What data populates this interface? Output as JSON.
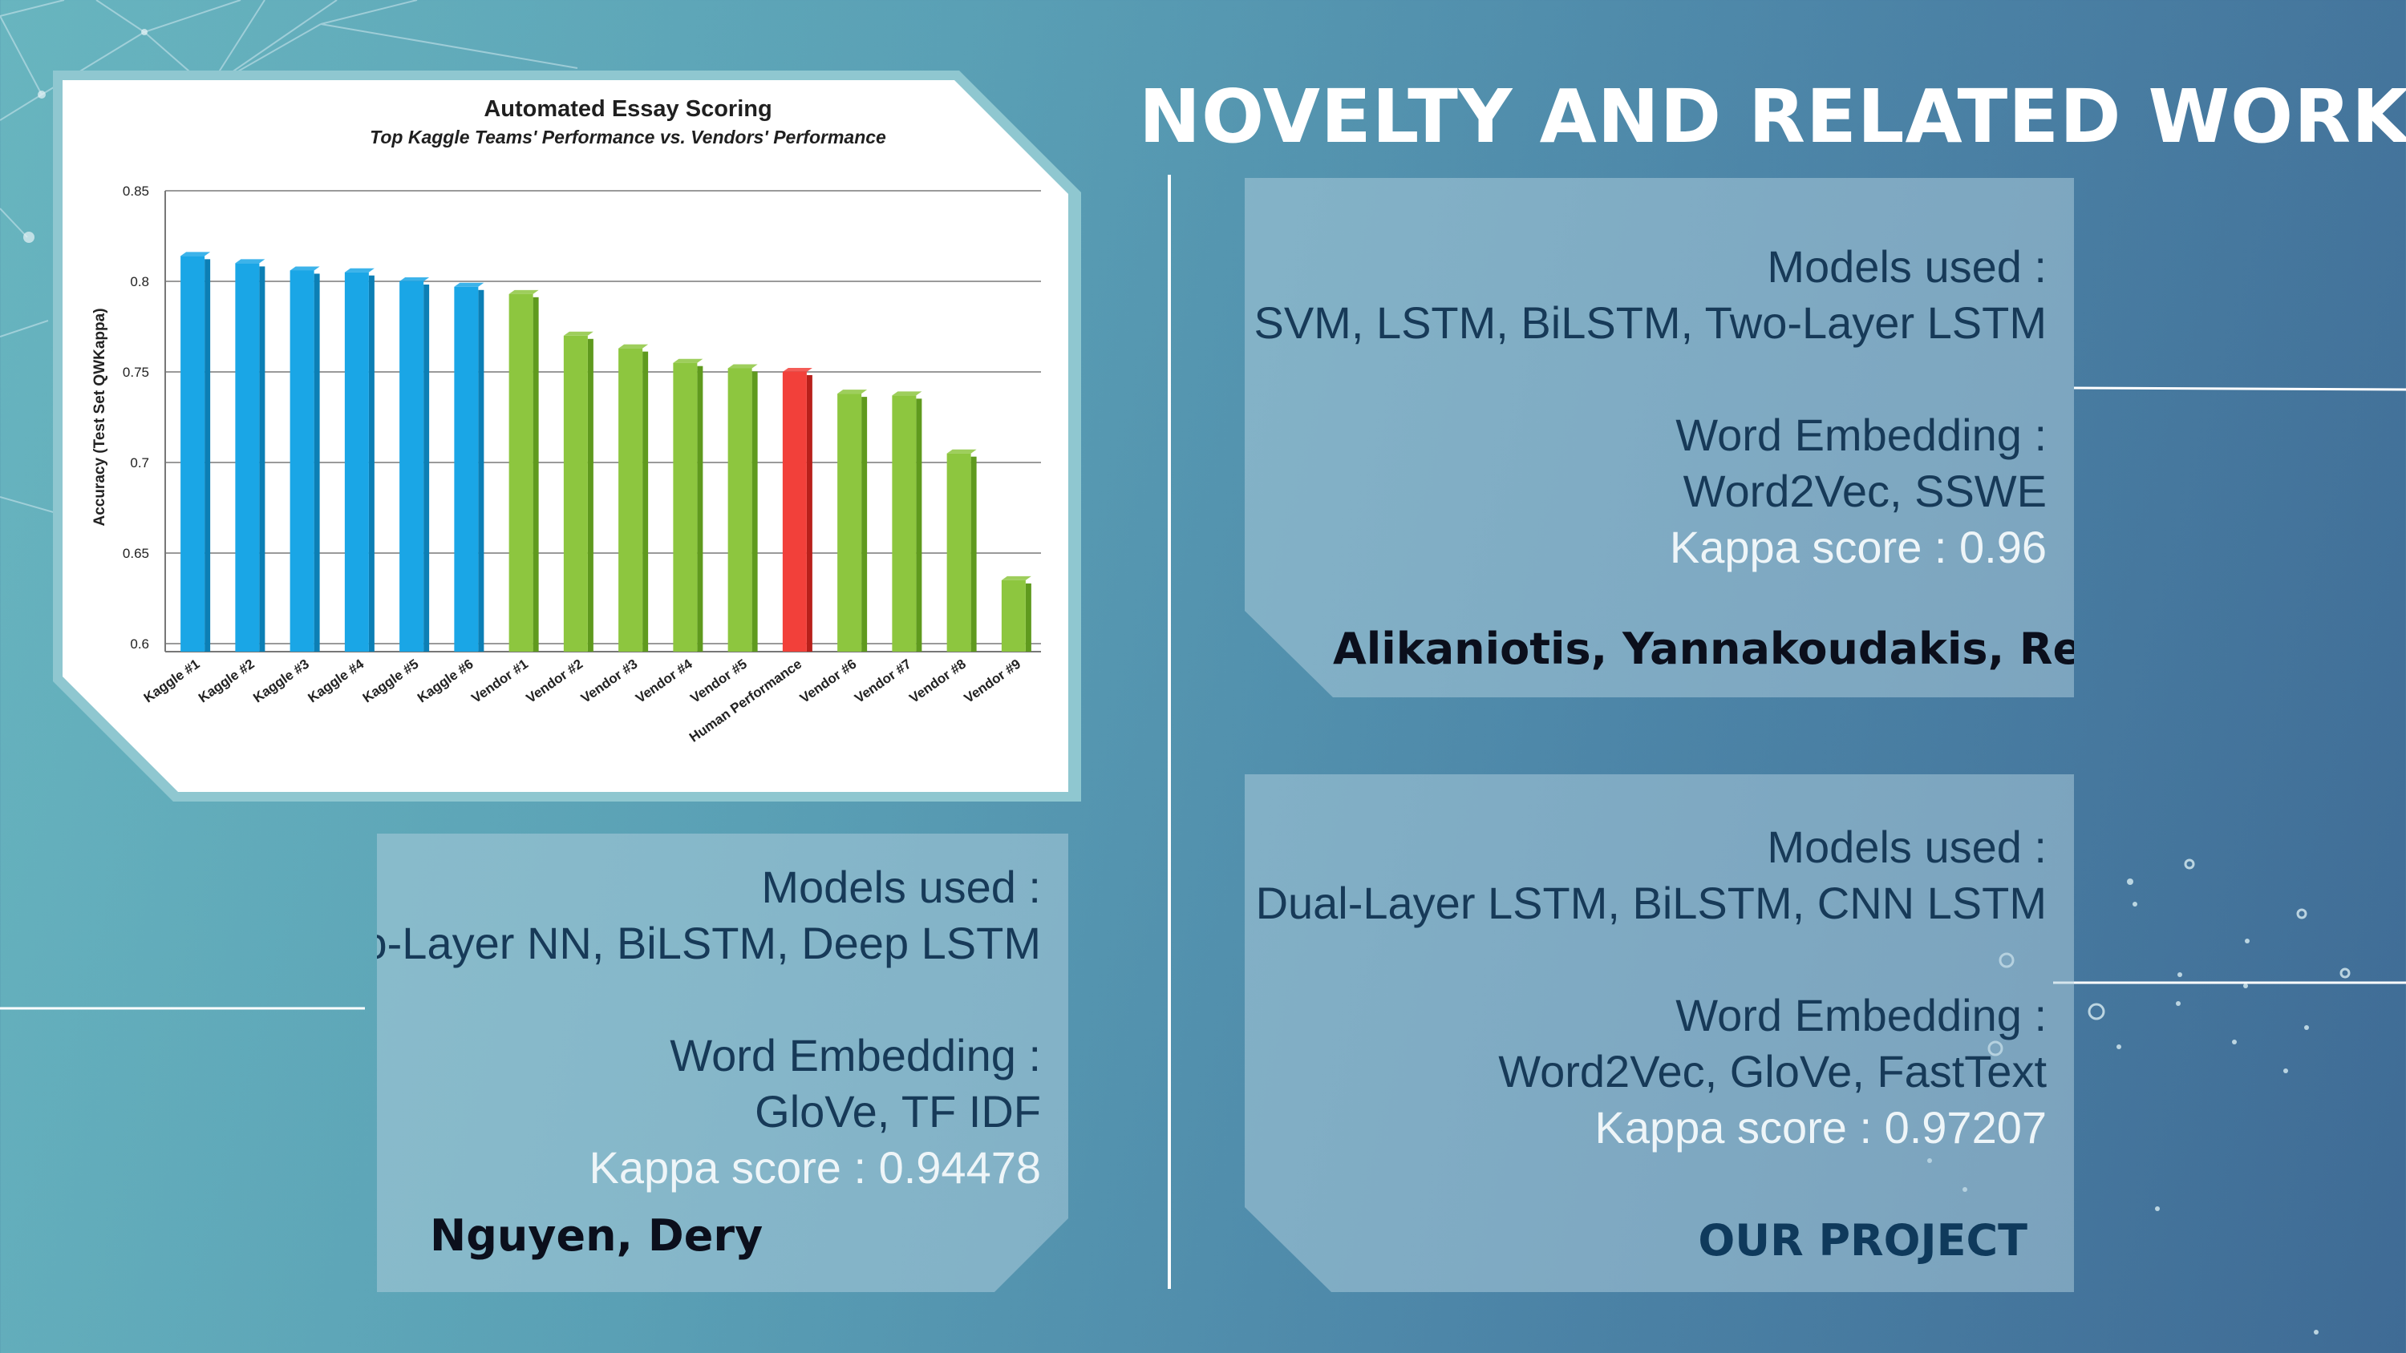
{
  "slide": {
    "title": "NOVELTY AND RELATED WORK"
  },
  "panels": {
    "top_right": {
      "models_label": "Models used :",
      "models": "SVM, LSTM, BiLSTM, Two-Layer LSTM",
      "embedding_label": "Word Embedding :",
      "embedding": "Word2Vec, SSWE",
      "kappa": "Kappa score : 0.96",
      "authors": "Alikaniotis, Yannakoudakis, Rei"
    },
    "bottom_left": {
      "models_label": "Models used :",
      "models": "Two-Layer NN, BiLSTM, Deep LSTM",
      "embedding_label": "Word Embedding :",
      "embedding": "GloVe, TF IDF",
      "kappa": "Kappa score : 0.94478",
      "authors": "Nguyen, Dery"
    },
    "bottom_right": {
      "models_label": "Models used :",
      "models": "Dual-Layer LSTM, BiLSTM, CNN LSTM",
      "embedding_label": "Word Embedding :",
      "embedding": "Word2Vec, GloVe, FastText",
      "kappa": "Kappa score : 0.97207",
      "authors": "OUR PROJECT"
    }
  },
  "colors": {
    "kaggle": "#1aa6e6",
    "vendor": "#8dc63f",
    "human": "#f2403a"
  },
  "chart_data": {
    "type": "bar",
    "title": "Automated Essay Scoring",
    "subtitle": "Top Kaggle Teams' Performance vs. Vendors' Performance",
    "ylabel": "Accuracy (Test Set QWKappa)",
    "xlabel": "",
    "ylim": [
      0.6,
      0.85
    ],
    "yticks": [
      "0.85",
      "0.8",
      "0.75",
      "0.7",
      "0.65",
      "0.6"
    ],
    "categories": [
      "Kaggle #1",
      "Kaggle #2",
      "Kaggle #3",
      "Kaggle #4",
      "Kaggle #5",
      "Kaggle #6",
      "Vendor #1",
      "Vendor #2",
      "Vendor #3",
      "Vendor #4",
      "Vendor #5",
      "Human Performance",
      "Vendor #6",
      "Vendor #7",
      "Vendor #8",
      "Vendor #9"
    ],
    "values": [
      0.814,
      0.81,
      0.806,
      0.805,
      0.8,
      0.797,
      0.793,
      0.77,
      0.763,
      0.755,
      0.752,
      0.75,
      0.738,
      0.737,
      0.705,
      0.635
    ],
    "groups": [
      "kaggle",
      "kaggle",
      "kaggle",
      "kaggle",
      "kaggle",
      "kaggle",
      "vendor",
      "vendor",
      "vendor",
      "vendor",
      "vendor",
      "human",
      "vendor",
      "vendor",
      "vendor",
      "vendor"
    ],
    "grid": true,
    "legend": "none"
  }
}
